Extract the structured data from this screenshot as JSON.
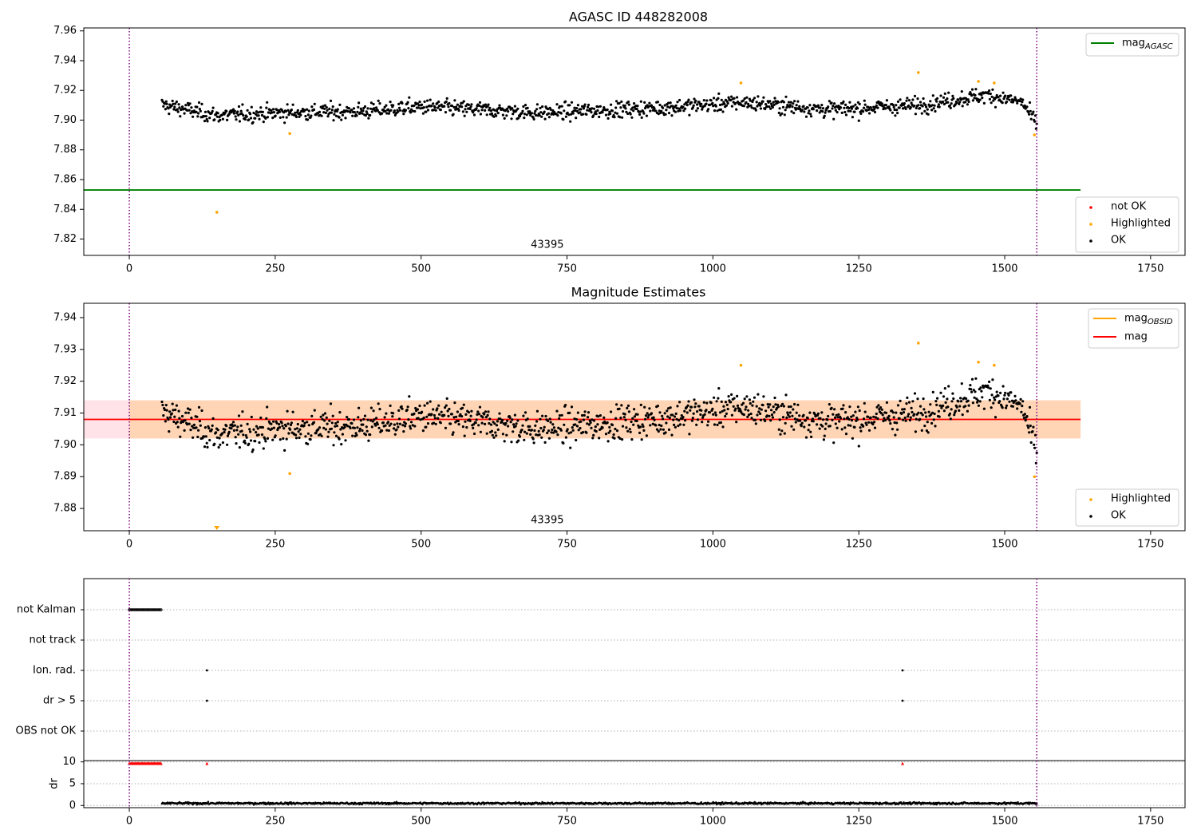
{
  "chart_data": [
    {
      "type": "scatter",
      "title": "AGASC ID 448282008",
      "xlim": [
        -78,
        1809
      ],
      "ylim": [
        7.809,
        7.962
      ],
      "xticks": [
        0,
        250,
        500,
        750,
        1000,
        1250,
        1500,
        1750
      ],
      "yticks": [
        7.82,
        7.84,
        7.86,
        7.88,
        7.9,
        7.92,
        7.94,
        7.96
      ],
      "obsid_label": "43395",
      "vlines_x": [
        0,
        1555
      ],
      "ok_series": {
        "x_start": 56,
        "x_end": 1555,
        "count": 1250,
        "trend": [
          [
            60,
            7.91
          ],
          [
            150,
            7.903
          ],
          [
            260,
            7.905
          ],
          [
            400,
            7.906
          ],
          [
            500,
            7.909
          ],
          [
            700,
            7.905
          ],
          [
            900,
            7.908
          ],
          [
            1050,
            7.912
          ],
          [
            1200,
            7.907
          ],
          [
            1350,
            7.91
          ],
          [
            1470,
            7.917
          ],
          [
            1530,
            7.912
          ],
          [
            1555,
            7.897
          ]
        ],
        "spread": 0.006
      },
      "highlighted": [
        [
          150,
          7.838
        ],
        [
          275,
          7.891
        ],
        [
          1048,
          7.925
        ],
        [
          1352,
          7.932
        ],
        [
          1455,
          7.926
        ],
        [
          1482,
          7.925
        ],
        [
          1551,
          7.89
        ]
      ],
      "mag_agasc": {
        "y": 7.853,
        "x_end": 1630
      },
      "legend_top": [
        "mag_AGASC"
      ],
      "legend_bottom": [
        "not OK",
        "Highlighted",
        "OK"
      ],
      "legend_top_placement": "upper right",
      "legend_bottom_placement": "lower right"
    },
    {
      "type": "scatter",
      "title": "Magnitude Estimates",
      "xlim": [
        -78,
        1809
      ],
      "ylim": [
        7.873,
        7.9445
      ],
      "xticks": [
        0,
        250,
        500,
        750,
        1000,
        1250,
        1500,
        1750
      ],
      "yticks": [
        7.88,
        7.89,
        7.9,
        7.91,
        7.92,
        7.93,
        7.94
      ],
      "obsid_label": "43395",
      "vlines_x": [
        0,
        1555
      ],
      "ok_series_ref": "same as panel 1",
      "highlighted": [
        [
          275,
          7.891
        ],
        [
          1048,
          7.925
        ],
        [
          1352,
          7.932
        ],
        [
          1455,
          7.926
        ],
        [
          1482,
          7.925
        ],
        [
          1551,
          7.89
        ]
      ],
      "highlighted_off_scale_x": 150,
      "mag_line": {
        "y": 7.908,
        "x_end": 1630
      },
      "band_mag": [
        7.902,
        7.914
      ],
      "band_obsid": [
        7.902,
        7.914
      ],
      "band_x_end": 1630,
      "legend_top": [
        "mag_OBSID",
        "mag"
      ],
      "legend_bottom": [
        "Highlighted",
        "OK"
      ],
      "legend_top_placement": "upper right",
      "legend_bottom_placement": "lower right"
    },
    {
      "type": "scatter",
      "xlim": [
        -78,
        1809
      ],
      "xticks": [
        0,
        250,
        500,
        750,
        1000,
        1250,
        1500,
        1750
      ],
      "flag_labels": [
        "not Kalman",
        "not track",
        "Ion. rad.",
        "dr > 5",
        "OBS not OK"
      ],
      "flag_points": {
        "not Kalman": {
          "x_from": 0,
          "x_to": 56
        },
        "not track": [],
        "Ion. rad.": [
          133,
          1325
        ],
        "dr > 5": [
          133,
          1325
        ],
        "OBS not OK": []
      },
      "dr_ylabel": "dr",
      "dr_yticks": [
        0,
        5,
        10
      ],
      "dr_ylim": [
        -0.5,
        10.3
      ],
      "dr_clipped_red": {
        "x_from": 0,
        "x_to": 56,
        "extra": [
          133,
          1325
        ]
      },
      "dr_series": {
        "x_start": 56,
        "x_end": 1555,
        "level": 0.5
      },
      "vlines_x": [
        0,
        1555
      ]
    }
  ],
  "colors": {
    "ok": "#000000",
    "highlighted": "#ffa500",
    "not_ok": "#ff0000",
    "agasc_line": "#008000",
    "mag_line": "#ff0000",
    "obsid_line": "#ffa500",
    "band_mag": "#ffc0cb",
    "band_obsid": "#ffa500",
    "vline": "#800080"
  }
}
